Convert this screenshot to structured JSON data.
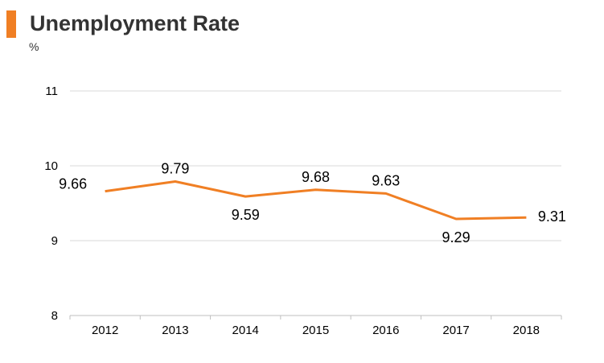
{
  "header": {
    "title": "Unemployment Rate",
    "unit": "%"
  },
  "colors": {
    "accent": "#f07f24",
    "line": "#f07f24",
    "grid": "#d9d9d9",
    "axis": "#bfbfbf"
  },
  "chart_data": {
    "type": "line",
    "title": "Unemployment Rate",
    "ylabel": "%",
    "categories": [
      "2012",
      "2013",
      "2014",
      "2015",
      "2016",
      "2017",
      "2018"
    ],
    "series": [
      {
        "values": [
          9.66,
          9.79,
          9.59,
          9.68,
          9.63,
          9.29,
          9.31
        ]
      }
    ],
    "data_labels": [
      "9.66",
      "9.79",
      "9.59",
      "9.68",
      "9.63",
      "9.29",
      "9.31"
    ],
    "ylim": [
      8,
      11
    ],
    "yticks": [
      "8",
      "9",
      "10",
      "11"
    ],
    "grid": true,
    "legend": "none"
  }
}
